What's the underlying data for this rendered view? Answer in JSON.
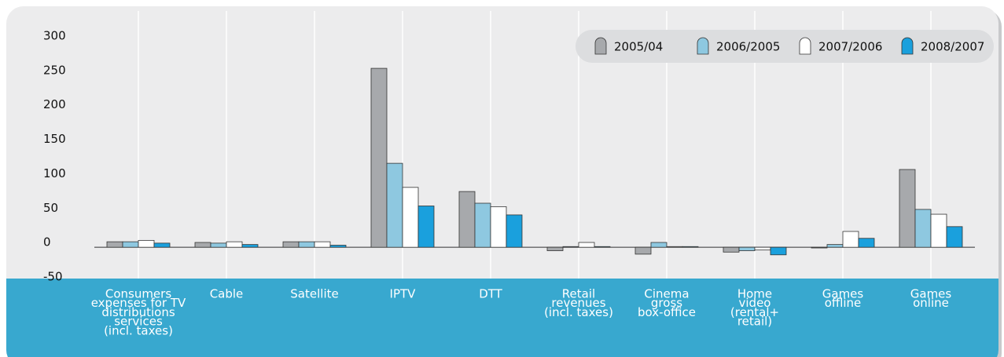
{
  "chart_data": {
    "type": "bar",
    "categories": [
      "Consumers\nexpenses for TV\ndistributions\nservices\n(incl. taxes)",
      "Cable",
      "Satellite",
      "IPTV",
      "DTT",
      "Retail\nrevenues\n(incl. taxes)",
      "Cinema\ngross\nbox-office",
      "Home\nvideo\n(rental+\nretail)",
      "Games\noffline",
      "Games\nonline"
    ],
    "series": [
      {
        "name": "2005/04",
        "color": "#a7a9ac",
        "values": [
          8,
          7,
          8,
          260,
          81,
          -5,
          -10,
          -7,
          -1,
          113
        ]
      },
      {
        "name": "2006/2005",
        "color": "#8ec8e0",
        "values": [
          8,
          6,
          8,
          122,
          64,
          1,
          7,
          -5,
          4,
          55
        ]
      },
      {
        "name": "2007/2006",
        "color": "#ffffff",
        "values": [
          10,
          8,
          8,
          87,
          59,
          7,
          1,
          -4,
          23,
          48
        ]
      },
      {
        "name": "2008/2007",
        "color": "#1aa0dd",
        "values": [
          6,
          4,
          3,
          60,
          47,
          1,
          1,
          -11,
          13,
          30
        ]
      }
    ],
    "ylim": [
      -50,
      300
    ],
    "yticks": [
      -50,
      0,
      50,
      100,
      150,
      200,
      250,
      300
    ],
    "legend": "top-right",
    "grid": true
  }
}
